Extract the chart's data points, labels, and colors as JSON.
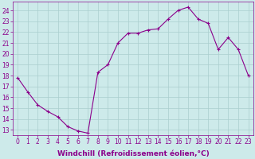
{
  "x": [
    0,
    1,
    2,
    3,
    4,
    5,
    6,
    7,
    8,
    9,
    10,
    11,
    12,
    13,
    14,
    15,
    16,
    17,
    18,
    19,
    20,
    21,
    22,
    23
  ],
  "y": [
    17.8,
    16.5,
    15.3,
    14.7,
    14.2,
    13.3,
    12.9,
    12.7,
    18.3,
    19.0,
    21.0,
    21.9,
    21.9,
    22.2,
    22.3,
    23.2,
    24.0,
    24.3,
    23.2,
    22.8,
    20.4,
    21.5,
    20.4,
    18.0
  ],
  "line_color": "#8b008b",
  "marker": "+",
  "bg_color": "#cdeaea",
  "grid_color": "#aacece",
  "xlabel": "Windchill (Refroidissement éolien,°C)",
  "ylabel_ticks": [
    13,
    14,
    15,
    16,
    17,
    18,
    19,
    20,
    21,
    22,
    23,
    24
  ],
  "ylim": [
    12.5,
    24.8
  ],
  "xlim": [
    -0.5,
    23.5
  ],
  "axis_color": "#8b008b",
  "tick_color": "#8b008b",
  "label_fontsize": 6.5,
  "tick_fontsize": 5.5
}
